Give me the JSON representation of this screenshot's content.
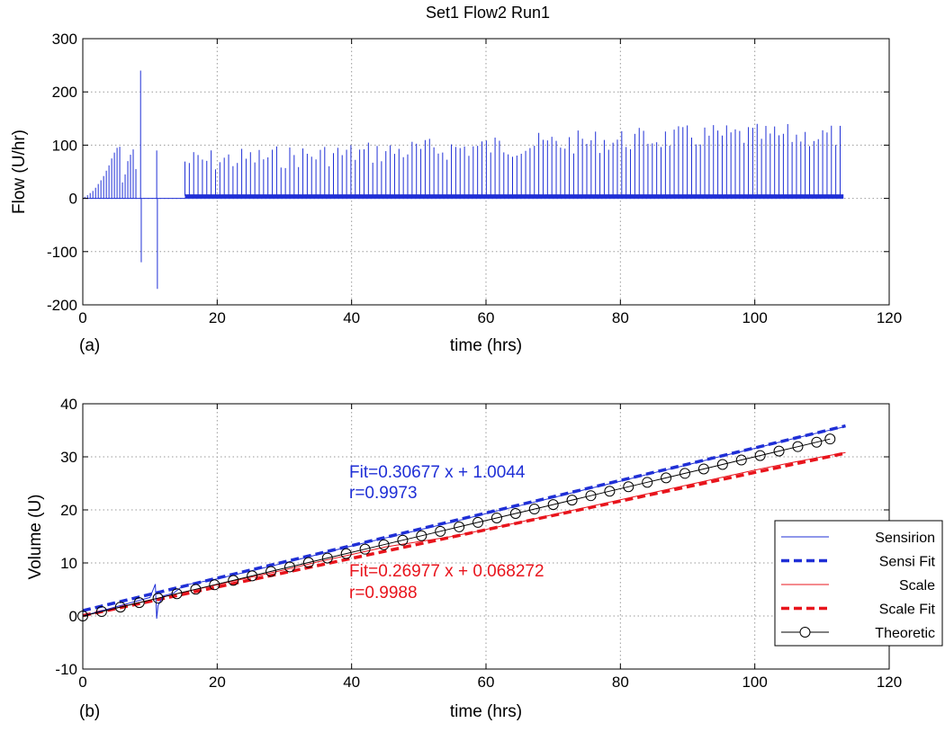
{
  "title": "Set1 Flow2  Run1",
  "colors": {
    "sensirion": "#1f2fd6",
    "scale": "#e8141c",
    "theoretic": "#000000",
    "grid": "#9a9a9a"
  },
  "chart_data": [
    {
      "type": "line",
      "panel_label": "(a)",
      "xlabel": "time (hrs)",
      "ylabel": "Flow (U/hr)",
      "xlim": [
        0,
        120
      ],
      "ylim": [
        -200,
        300
      ],
      "xticks": [
        0,
        20,
        40,
        60,
        80,
        100,
        120
      ],
      "yticks": [
        -200,
        -100,
        0,
        100,
        200,
        300
      ],
      "xtick_labels": [
        "0",
        "20",
        "40",
        "60",
        "80",
        "100",
        "120"
      ],
      "ytick_labels": [
        "-200",
        "-100",
        "0",
        "100",
        "200",
        "300"
      ],
      "grid": true,
      "series": [
        {
          "color": "#1f2fd6",
          "spikes_early": [
            {
              "x": 0.3,
              "y": 3
            },
            {
              "x": 0.7,
              "y": 6
            },
            {
              "x": 1.1,
              "y": 10
            },
            {
              "x": 1.5,
              "y": 14
            },
            {
              "x": 1.9,
              "y": 20
            },
            {
              "x": 2.3,
              "y": 27
            },
            {
              "x": 2.7,
              "y": 34
            },
            {
              "x": 3.1,
              "y": 42
            },
            {
              "x": 3.5,
              "y": 52
            },
            {
              "x": 3.9,
              "y": 62
            },
            {
              "x": 4.3,
              "y": 75
            },
            {
              "x": 4.7,
              "y": 86
            },
            {
              "x": 5.1,
              "y": 95
            },
            {
              "x": 5.5,
              "y": 97
            },
            {
              "x": 5.9,
              "y": 30
            },
            {
              "x": 6.3,
              "y": 45
            },
            {
              "x": 6.7,
              "y": 70
            },
            {
              "x": 7.1,
              "y": 82
            },
            {
              "x": 7.5,
              "y": 92
            },
            {
              "x": 7.9,
              "y": 55
            },
            {
              "x": 8.6,
              "y": 240
            },
            {
              "x": 8.7,
              "y": -120
            },
            {
              "x": 11.0,
              "y": 90
            },
            {
              "x": 11.1,
              "y": -170
            }
          ],
          "periodic_start": 15.2,
          "periodic_end": 113.2,
          "periodic_step": 0.65,
          "periodic_baseline": 5,
          "periodic_range": [
            65,
            140
          ]
        }
      ]
    },
    {
      "type": "line",
      "panel_label": "(b)",
      "xlabel": "time (hrs)",
      "ylabel": "Volume (U)",
      "xlim": [
        0,
        120
      ],
      "ylim": [
        -10,
        40
      ],
      "xticks": [
        0,
        20,
        40,
        60,
        80,
        100,
        120
      ],
      "yticks": [
        -10,
        0,
        10,
        20,
        30,
        40
      ],
      "xtick_labels": [
        "0",
        "20",
        "40",
        "60",
        "80",
        "100",
        "120"
      ],
      "ytick_labels": [
        "-10",
        "0",
        "10",
        "20",
        "30",
        "40"
      ],
      "grid": true,
      "legend_position": "lower-right",
      "series": [
        {
          "name": "Sensirion",
          "color": "#1f2fd6",
          "style": "solid-thin",
          "x": [
            0,
            2,
            4,
            6,
            8,
            10,
            10.8,
            11.0,
            11.2,
            12,
            13.5,
            15,
            20,
            25,
            30,
            35,
            40,
            45,
            50,
            55,
            60,
            65,
            70,
            75,
            80,
            85,
            90,
            95,
            100,
            105,
            110,
            113.5
          ],
          "y": [
            0,
            0.7,
            1.4,
            2.1,
            2.8,
            3.5,
            6.0,
            -0.5,
            2.0,
            3.8,
            4.3,
            5.8,
            7.0,
            8.5,
            10.0,
            11.6,
            13.2,
            14.7,
            16.2,
            17.7,
            19.3,
            20.8,
            22.3,
            23.9,
            25.4,
            27.0,
            28.5,
            30.1,
            31.6,
            33.2,
            34.7,
            35.7
          ]
        },
        {
          "name": "Sensi Fit",
          "color": "#1f2fd6",
          "style": "dashed-thick",
          "x": [
            0,
            113.5
          ],
          "y": [
            1.0044,
            35.823
          ]
        },
        {
          "name": "Scale",
          "color": "#e8141c",
          "style": "solid-thin",
          "x": [
            0,
            5,
            10,
            15,
            20,
            25,
            30,
            35,
            40,
            45,
            50,
            55,
            60,
            65,
            70,
            75,
            80,
            85,
            90,
            95,
            100,
            105,
            110,
            113.5
          ],
          "y": [
            0,
            1.5,
            3.0,
            4.5,
            5.9,
            7.3,
            8.7,
            10.2,
            11.6,
            13.0,
            14.0,
            15.0,
            16.3,
            17.7,
            19.1,
            20.5,
            21.9,
            23.3,
            24.7,
            26.1,
            27.5,
            28.8,
            30.0,
            30.8
          ]
        },
        {
          "name": "Scale Fit",
          "color": "#e8141c",
          "style": "dashed-thick",
          "x": [
            0,
            113.5
          ],
          "y": [
            0.068272,
            30.687
          ]
        },
        {
          "name": "Theoretic",
          "color": "#000000",
          "style": "solid-circle",
          "x": [
            0,
            2.8,
            5.6,
            8.4,
            11.2,
            14.0,
            16.8,
            19.6,
            22.4,
            25.2,
            28.0,
            30.8,
            33.6,
            36.4,
            39.2,
            42.0,
            44.8,
            47.6,
            50.4,
            53.2,
            56.0,
            58.8,
            61.6,
            64.4,
            67.2,
            70.0,
            72.8,
            75.6,
            78.4,
            81.2,
            84.0,
            86.8,
            89.6,
            92.4,
            95.2,
            98.0,
            100.8,
            103.6,
            106.4,
            109.2,
            111.2
          ],
          "y": [
            0,
            0.84,
            1.68,
            2.52,
            3.36,
            4.2,
            5.04,
            5.88,
            6.72,
            7.56,
            8.4,
            9.24,
            10.08,
            10.92,
            11.76,
            12.6,
            13.44,
            14.28,
            15.12,
            15.96,
            16.8,
            17.64,
            18.48,
            19.32,
            20.16,
            21.0,
            21.84,
            22.68,
            23.52,
            24.36,
            25.2,
            26.04,
            26.88,
            27.72,
            28.56,
            29.4,
            30.24,
            31.08,
            31.92,
            32.76,
            33.36
          ]
        }
      ],
      "annotations": [
        {
          "text": "Fit=0.30677 x + 1.0044",
          "color": "#1f2fd6"
        },
        {
          "text": "r=0.9973",
          "color": "#1f2fd6"
        },
        {
          "text": "Fit=0.26977 x + 0.068272",
          "color": "#e8141c"
        },
        {
          "text": "r=0.9988",
          "color": "#e8141c"
        }
      ]
    }
  ]
}
